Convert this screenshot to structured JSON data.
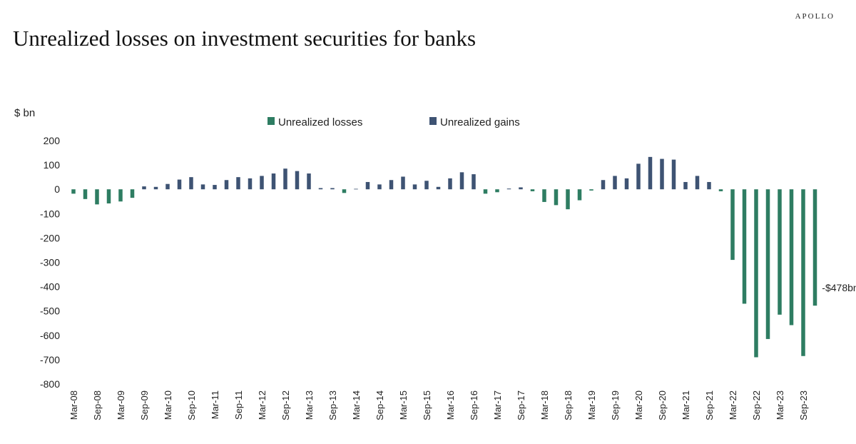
{
  "header": {
    "title": "Unrealized losses on investment securities for banks",
    "brand": "APOLLO"
  },
  "colors": {
    "losses": "#2e7d62",
    "gains": "#3e5373",
    "text": "#222222"
  },
  "chart_data": {
    "type": "bar",
    "title": "Unrealized losses on investment securities for banks",
    "ylabel": "$ bn",
    "ylim": [
      -800,
      200
    ],
    "yticks": [
      200,
      100,
      0,
      -100,
      -200,
      -300,
      -400,
      -500,
      -600,
      -700,
      -800
    ],
    "grid": false,
    "legend": {
      "placement": "top-center",
      "entries": [
        "Unrealized losses",
        "Unrealized gains"
      ]
    },
    "annotation": {
      "text": "-$478bn",
      "category": "Dec-23"
    },
    "tick_labels": [
      "Mar-08",
      "Sep-08",
      "Mar-09",
      "Sep-09",
      "Mar-10",
      "Sep-10",
      "Mar-11",
      "Sep-11",
      "Mar-12",
      "Sep-12",
      "Mar-13",
      "Sep-13",
      "Mar-14",
      "Sep-14",
      "Mar-15",
      "Sep-15",
      "Mar-16",
      "Sep-16",
      "Mar-17",
      "Sep-17",
      "Mar-18",
      "Sep-18",
      "Mar-19",
      "Sep-19",
      "Mar-20",
      "Sep-20",
      "Mar-21",
      "Sep-21",
      "Mar-22",
      "Sep-22",
      "Mar-23",
      "Sep-23"
    ],
    "categories": [
      "Mar-08",
      "Jun-08",
      "Sep-08",
      "Dec-08",
      "Mar-09",
      "Jun-09",
      "Sep-09",
      "Dec-09",
      "Mar-10",
      "Jun-10",
      "Sep-10",
      "Dec-10",
      "Mar-11",
      "Jun-11",
      "Sep-11",
      "Dec-11",
      "Mar-12",
      "Jun-12",
      "Sep-12",
      "Dec-12",
      "Mar-13",
      "Jun-13",
      "Sep-13",
      "Dec-13",
      "Mar-14",
      "Jun-14",
      "Sep-14",
      "Dec-14",
      "Mar-15",
      "Jun-15",
      "Sep-15",
      "Dec-15",
      "Mar-16",
      "Jun-16",
      "Sep-16",
      "Dec-16",
      "Mar-17",
      "Jun-17",
      "Sep-17",
      "Dec-17",
      "Mar-18",
      "Jun-18",
      "Sep-18",
      "Dec-18",
      "Mar-19",
      "Jun-19",
      "Sep-19",
      "Dec-19",
      "Mar-20",
      "Jun-20",
      "Sep-20",
      "Dec-20",
      "Mar-21",
      "Jun-21",
      "Sep-21",
      "Dec-21",
      "Mar-22",
      "Jun-22",
      "Sep-22",
      "Dec-22",
      "Mar-23",
      "Jun-23",
      "Sep-23",
      "Dec-23"
    ],
    "values": [
      -18,
      -40,
      -62,
      -58,
      -50,
      -35,
      12,
      10,
      22,
      40,
      50,
      20,
      18,
      38,
      50,
      45,
      55,
      65,
      85,
      75,
      65,
      5,
      5,
      -15,
      2,
      30,
      20,
      38,
      52,
      20,
      35,
      10,
      45,
      70,
      62,
      -18,
      -12,
      3,
      8,
      -8,
      -52,
      -65,
      -82,
      -45,
      -5,
      38,
      55,
      45,
      105,
      133,
      125,
      122,
      30,
      55,
      30,
      -8,
      -290,
      -470,
      -690,
      -615,
      -515,
      -558,
      -685,
      -478
    ],
    "series": [
      {
        "name": "Unrealized losses",
        "sign": "negative"
      },
      {
        "name": "Unrealized gains",
        "sign": "positive"
      }
    ]
  }
}
